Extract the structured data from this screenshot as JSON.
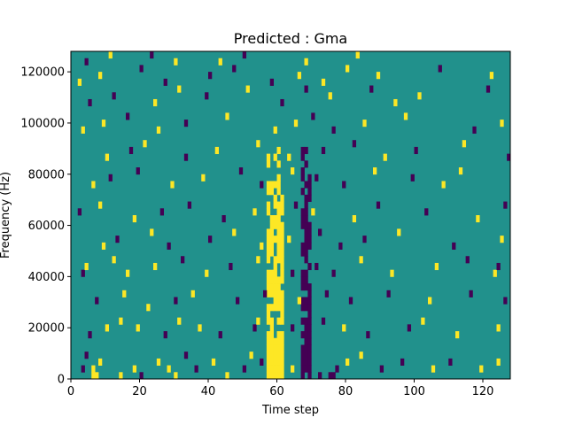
{
  "chart_data": {
    "type": "heatmap",
    "title": "Predicted : Gma",
    "xlabel": "Time step",
    "ylabel": "Frequency (Hz)",
    "xlim": [
      0,
      128
    ],
    "ylim": [
      0,
      128000
    ],
    "xticks": [
      0,
      20,
      40,
      60,
      80,
      100,
      120
    ],
    "yticks": [
      0,
      20000,
      40000,
      60000,
      80000,
      100000,
      120000
    ],
    "grid": false,
    "colors": {
      "background": "#21918c",
      "high": "#fde725",
      "low": "#440154"
    },
    "time_bins": 128,
    "frequency_bins": 48,
    "dense_bands": [
      {
        "value": "high",
        "t_start": 57,
        "t_end": 62,
        "f_start": 0,
        "f_end": 90000
      },
      {
        "value": "low",
        "t_start": 67,
        "t_end": 70,
        "f_start": 0,
        "f_end": 90000
      }
    ],
    "cells": [
      {
        "t": 6,
        "f_bin": 0,
        "value": "high"
      },
      {
        "t": 7,
        "f_bin": 0,
        "value": "high"
      },
      {
        "t": 6,
        "f_bin": 1,
        "value": "high"
      },
      {
        "t": 8,
        "f_bin": 2,
        "value": "high"
      },
      {
        "t": 3,
        "f_bin": 1,
        "value": "low"
      },
      {
        "t": 4,
        "f_bin": 3,
        "value": "low"
      },
      {
        "t": 14,
        "f_bin": 0,
        "value": "high"
      },
      {
        "t": 18,
        "f_bin": 1,
        "value": "high"
      },
      {
        "t": 20,
        "f_bin": 0,
        "value": "low"
      },
      {
        "t": 25,
        "f_bin": 2,
        "value": "high"
      },
      {
        "t": 28,
        "f_bin": 1,
        "value": "high"
      },
      {
        "t": 30,
        "f_bin": 0,
        "value": "high"
      },
      {
        "t": 33,
        "f_bin": 3,
        "value": "low"
      },
      {
        "t": 36,
        "f_bin": 1,
        "value": "low"
      },
      {
        "t": 41,
        "f_bin": 2,
        "value": "high"
      },
      {
        "t": 45,
        "f_bin": 0,
        "value": "high"
      },
      {
        "t": 50,
        "f_bin": 1,
        "value": "low"
      },
      {
        "t": 52,
        "f_bin": 3,
        "value": "high"
      },
      {
        "t": 55,
        "f_bin": 2,
        "value": "low"
      },
      {
        "t": 64,
        "f_bin": 1,
        "value": "high"
      },
      {
        "t": 72,
        "f_bin": 0,
        "value": "low"
      },
      {
        "t": 75,
        "f_bin": 0,
        "value": "low"
      },
      {
        "t": 76,
        "f_bin": 0,
        "value": "low"
      },
      {
        "t": 77,
        "f_bin": 1,
        "value": "low"
      },
      {
        "t": 80,
        "f_bin": 2,
        "value": "high"
      },
      {
        "t": 84,
        "f_bin": 3,
        "value": "high"
      },
      {
        "t": 90,
        "f_bin": 1,
        "value": "low"
      },
      {
        "t": 96,
        "f_bin": 2,
        "value": "low"
      },
      {
        "t": 105,
        "f_bin": 1,
        "value": "high"
      },
      {
        "t": 110,
        "f_bin": 2,
        "value": "low"
      },
      {
        "t": 119,
        "f_bin": 1,
        "value": "high"
      },
      {
        "t": 124,
        "f_bin": 2,
        "value": "high"
      },
      {
        "t": 5,
        "f_bin": 6,
        "value": "low"
      },
      {
        "t": 10,
        "f_bin": 7,
        "value": "high"
      },
      {
        "t": 14,
        "f_bin": 8,
        "value": "high"
      },
      {
        "t": 19,
        "f_bin": 7,
        "value": "high"
      },
      {
        "t": 27,
        "f_bin": 6,
        "value": "low"
      },
      {
        "t": 31,
        "f_bin": 8,
        "value": "high"
      },
      {
        "t": 37,
        "f_bin": 7,
        "value": "high"
      },
      {
        "t": 43,
        "f_bin": 6,
        "value": "low"
      },
      {
        "t": 53,
        "f_bin": 7,
        "value": "low"
      },
      {
        "t": 54,
        "f_bin": 8,
        "value": "high"
      },
      {
        "t": 64,
        "f_bin": 7,
        "value": "low"
      },
      {
        "t": 73,
        "f_bin": 8,
        "value": "low"
      },
      {
        "t": 79,
        "f_bin": 7,
        "value": "high"
      },
      {
        "t": 86,
        "f_bin": 6,
        "value": "low"
      },
      {
        "t": 98,
        "f_bin": 7,
        "value": "low"
      },
      {
        "t": 102,
        "f_bin": 8,
        "value": "high"
      },
      {
        "t": 112,
        "f_bin": 6,
        "value": "high"
      },
      {
        "t": 124,
        "f_bin": 7,
        "value": "high"
      },
      {
        "t": 7,
        "f_bin": 11,
        "value": "low"
      },
      {
        "t": 15,
        "f_bin": 12,
        "value": "high"
      },
      {
        "t": 22,
        "f_bin": 10,
        "value": "high"
      },
      {
        "t": 30,
        "f_bin": 11,
        "value": "low"
      },
      {
        "t": 35,
        "f_bin": 12,
        "value": "high"
      },
      {
        "t": 48,
        "f_bin": 11,
        "value": "low"
      },
      {
        "t": 56,
        "f_bin": 12,
        "value": "low"
      },
      {
        "t": 66,
        "f_bin": 11,
        "value": "high"
      },
      {
        "t": 74,
        "f_bin": 12,
        "value": "low"
      },
      {
        "t": 81,
        "f_bin": 11,
        "value": "low"
      },
      {
        "t": 92,
        "f_bin": 12,
        "value": "low"
      },
      {
        "t": 104,
        "f_bin": 11,
        "value": "high"
      },
      {
        "t": 116,
        "f_bin": 12,
        "value": "low"
      },
      {
        "t": 126,
        "f_bin": 11,
        "value": "low"
      },
      {
        "t": 3,
        "f_bin": 15,
        "value": "low"
      },
      {
        "t": 4,
        "f_bin": 16,
        "value": "high"
      },
      {
        "t": 12,
        "f_bin": 17,
        "value": "high"
      },
      {
        "t": 16,
        "f_bin": 15,
        "value": "high"
      },
      {
        "t": 24,
        "f_bin": 16,
        "value": "high"
      },
      {
        "t": 32,
        "f_bin": 17,
        "value": "low"
      },
      {
        "t": 39,
        "f_bin": 15,
        "value": "high"
      },
      {
        "t": 46,
        "f_bin": 16,
        "value": "low"
      },
      {
        "t": 54,
        "f_bin": 17,
        "value": "high"
      },
      {
        "t": 64,
        "f_bin": 15,
        "value": "low"
      },
      {
        "t": 71,
        "f_bin": 16,
        "value": "low"
      },
      {
        "t": 76,
        "f_bin": 15,
        "value": "low"
      },
      {
        "t": 84,
        "f_bin": 17,
        "value": "high"
      },
      {
        "t": 93,
        "f_bin": 15,
        "value": "high"
      },
      {
        "t": 106,
        "f_bin": 16,
        "value": "high"
      },
      {
        "t": 115,
        "f_bin": 17,
        "value": "low"
      },
      {
        "t": 123,
        "f_bin": 15,
        "value": "high"
      },
      {
        "t": 124,
        "f_bin": 16,
        "value": "low"
      },
      {
        "t": 9,
        "f_bin": 19,
        "value": "high"
      },
      {
        "t": 13,
        "f_bin": 20,
        "value": "low"
      },
      {
        "t": 23,
        "f_bin": 21,
        "value": "high"
      },
      {
        "t": 28,
        "f_bin": 19,
        "value": "low"
      },
      {
        "t": 40,
        "f_bin": 20,
        "value": "low"
      },
      {
        "t": 47,
        "f_bin": 21,
        "value": "high"
      },
      {
        "t": 55,
        "f_bin": 19,
        "value": "high"
      },
      {
        "t": 63,
        "f_bin": 20,
        "value": "high"
      },
      {
        "t": 72,
        "f_bin": 21,
        "value": "low"
      },
      {
        "t": 78,
        "f_bin": 19,
        "value": "low"
      },
      {
        "t": 85,
        "f_bin": 20,
        "value": "low"
      },
      {
        "t": 95,
        "f_bin": 21,
        "value": "high"
      },
      {
        "t": 111,
        "f_bin": 19,
        "value": "low"
      },
      {
        "t": 125,
        "f_bin": 20,
        "value": "high"
      },
      {
        "t": 2,
        "f_bin": 24,
        "value": "low"
      },
      {
        "t": 8,
        "f_bin": 25,
        "value": "high"
      },
      {
        "t": 18,
        "f_bin": 23,
        "value": "high"
      },
      {
        "t": 26,
        "f_bin": 24,
        "value": "low"
      },
      {
        "t": 34,
        "f_bin": 25,
        "value": "low"
      },
      {
        "t": 44,
        "f_bin": 23,
        "value": "low"
      },
      {
        "t": 53,
        "f_bin": 24,
        "value": "high"
      },
      {
        "t": 65,
        "f_bin": 25,
        "value": "low"
      },
      {
        "t": 70,
        "f_bin": 24,
        "value": "high"
      },
      {
        "t": 82,
        "f_bin": 23,
        "value": "high"
      },
      {
        "t": 89,
        "f_bin": 25,
        "value": "low"
      },
      {
        "t": 103,
        "f_bin": 24,
        "value": "low"
      },
      {
        "t": 118,
        "f_bin": 23,
        "value": "high"
      },
      {
        "t": 126,
        "f_bin": 25,
        "value": "low"
      },
      {
        "t": 6,
        "f_bin": 28,
        "value": "high"
      },
      {
        "t": 11,
        "f_bin": 29,
        "value": "low"
      },
      {
        "t": 19,
        "f_bin": 30,
        "value": "low"
      },
      {
        "t": 29,
        "f_bin": 28,
        "value": "high"
      },
      {
        "t": 38,
        "f_bin": 29,
        "value": "high"
      },
      {
        "t": 49,
        "f_bin": 30,
        "value": "low"
      },
      {
        "t": 55,
        "f_bin": 28,
        "value": "low"
      },
      {
        "t": 64,
        "f_bin": 30,
        "value": "high"
      },
      {
        "t": 71,
        "f_bin": 29,
        "value": "low"
      },
      {
        "t": 79,
        "f_bin": 28,
        "value": "low"
      },
      {
        "t": 88,
        "f_bin": 30,
        "value": "high"
      },
      {
        "t": 99,
        "f_bin": 29,
        "value": "low"
      },
      {
        "t": 108,
        "f_bin": 28,
        "value": "high"
      },
      {
        "t": 113,
        "f_bin": 30,
        "value": "high"
      },
      {
        "t": 10,
        "f_bin": 32,
        "value": "high"
      },
      {
        "t": 17,
        "f_bin": 33,
        "value": "low"
      },
      {
        "t": 21,
        "f_bin": 34,
        "value": "high"
      },
      {
        "t": 33,
        "f_bin": 32,
        "value": "low"
      },
      {
        "t": 42,
        "f_bin": 33,
        "value": "high"
      },
      {
        "t": 54,
        "f_bin": 34,
        "value": "high"
      },
      {
        "t": 63,
        "f_bin": 32,
        "value": "high"
      },
      {
        "t": 73,
        "f_bin": 33,
        "value": "low"
      },
      {
        "t": 82,
        "f_bin": 34,
        "value": "low"
      },
      {
        "t": 91,
        "f_bin": 32,
        "value": "high"
      },
      {
        "t": 100,
        "f_bin": 33,
        "value": "low"
      },
      {
        "t": 114,
        "f_bin": 34,
        "value": "high"
      },
      {
        "t": 127,
        "f_bin": 32,
        "value": "low"
      },
      {
        "t": 3,
        "f_bin": 36,
        "value": "high"
      },
      {
        "t": 9,
        "f_bin": 37,
        "value": "high"
      },
      {
        "t": 16,
        "f_bin": 38,
        "value": "low"
      },
      {
        "t": 25,
        "f_bin": 36,
        "value": "high"
      },
      {
        "t": 33,
        "f_bin": 37,
        "value": "low"
      },
      {
        "t": 45,
        "f_bin": 38,
        "value": "high"
      },
      {
        "t": 59,
        "f_bin": 36,
        "value": "high"
      },
      {
        "t": 65,
        "f_bin": 37,
        "value": "high"
      },
      {
        "t": 70,
        "f_bin": 38,
        "value": "low"
      },
      {
        "t": 76,
        "f_bin": 36,
        "value": "low"
      },
      {
        "t": 85,
        "f_bin": 37,
        "value": "high"
      },
      {
        "t": 97,
        "f_bin": 38,
        "value": "high"
      },
      {
        "t": 117,
        "f_bin": 36,
        "value": "low"
      },
      {
        "t": 125,
        "f_bin": 37,
        "value": "high"
      },
      {
        "t": 5,
        "f_bin": 40,
        "value": "low"
      },
      {
        "t": 12,
        "f_bin": 41,
        "value": "low"
      },
      {
        "t": 24,
        "f_bin": 40,
        "value": "high"
      },
      {
        "t": 31,
        "f_bin": 42,
        "value": "high"
      },
      {
        "t": 39,
        "f_bin": 41,
        "value": "low"
      },
      {
        "t": 51,
        "f_bin": 42,
        "value": "high"
      },
      {
        "t": 61,
        "f_bin": 40,
        "value": "low"
      },
      {
        "t": 68,
        "f_bin": 42,
        "value": "low"
      },
      {
        "t": 75,
        "f_bin": 41,
        "value": "high"
      },
      {
        "t": 87,
        "f_bin": 42,
        "value": "low"
      },
      {
        "t": 94,
        "f_bin": 40,
        "value": "high"
      },
      {
        "t": 101,
        "f_bin": 41,
        "value": "high"
      },
      {
        "t": 121,
        "f_bin": 42,
        "value": "low"
      },
      {
        "t": 2,
        "f_bin": 43,
        "value": "high"
      },
      {
        "t": 8,
        "f_bin": 44,
        "value": "high"
      },
      {
        "t": 20,
        "f_bin": 45,
        "value": "low"
      },
      {
        "t": 27,
        "f_bin": 43,
        "value": "low"
      },
      {
        "t": 40,
        "f_bin": 44,
        "value": "low"
      },
      {
        "t": 47,
        "f_bin": 45,
        "value": "low"
      },
      {
        "t": 58,
        "f_bin": 43,
        "value": "low"
      },
      {
        "t": 66,
        "f_bin": 44,
        "value": "high"
      },
      {
        "t": 73,
        "f_bin": 43,
        "value": "high"
      },
      {
        "t": 80,
        "f_bin": 45,
        "value": "high"
      },
      {
        "t": 89,
        "f_bin": 44,
        "value": "high"
      },
      {
        "t": 107,
        "f_bin": 45,
        "value": "low"
      },
      {
        "t": 122,
        "f_bin": 44,
        "value": "high"
      },
      {
        "t": 4,
        "f_bin": 46,
        "value": "low"
      },
      {
        "t": 11,
        "f_bin": 47,
        "value": "high"
      },
      {
        "t": 23,
        "f_bin": 47,
        "value": "low"
      },
      {
        "t": 30,
        "f_bin": 46,
        "value": "high"
      },
      {
        "t": 43,
        "f_bin": 46,
        "value": "high"
      },
      {
        "t": 50,
        "f_bin": 47,
        "value": "low"
      },
      {
        "t": 68,
        "f_bin": 46,
        "value": "high"
      },
      {
        "t": 83,
        "f_bin": 47,
        "value": "high"
      }
    ]
  }
}
